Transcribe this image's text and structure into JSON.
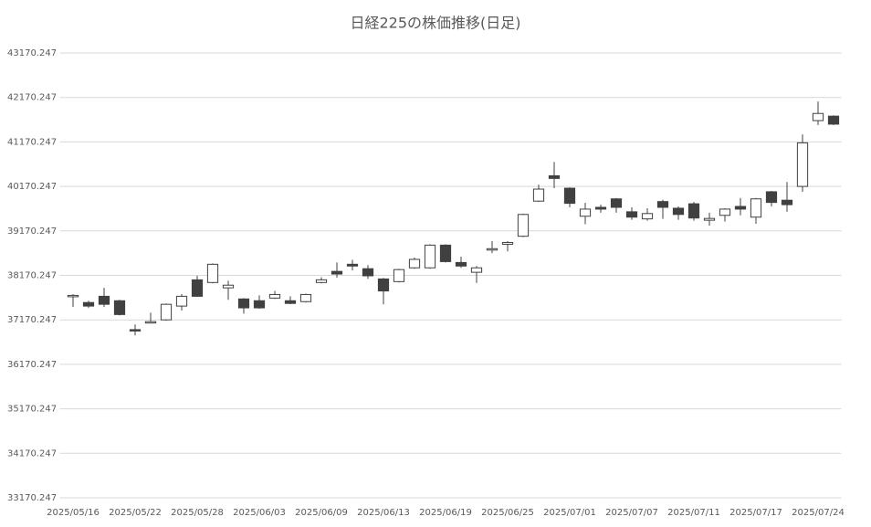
{
  "chart_data": {
    "type": "candlestick",
    "title": "日経225の株価推移(日足)",
    "categories": [
      "2025/05/16",
      null,
      null,
      null,
      "2025/05/22",
      null,
      null,
      null,
      "2025/05/28",
      null,
      null,
      null,
      "2025/06/03",
      null,
      null,
      null,
      "2025/06/09",
      null,
      null,
      null,
      "2025/06/13",
      null,
      null,
      null,
      "2025/06/19",
      null,
      null,
      null,
      "2025/06/25",
      null,
      null,
      null,
      "2025/07/01",
      null,
      null,
      null,
      "2025/07/07",
      null,
      null,
      null,
      "2025/07/11",
      null,
      null,
      null,
      "2025/07/17",
      null,
      null,
      null,
      "2025/07/24",
      null
    ],
    "open": [
      37710,
      37560,
      37700,
      37600,
      36950,
      37120,
      37170,
      37480,
      38070,
      38010,
      37890,
      37640,
      37600,
      37660,
      37600,
      37580,
      38010,
      38260,
      38420,
      38320,
      38090,
      38030,
      38340,
      38340,
      38850,
      38460,
      38240,
      38760,
      38870,
      39050,
      39840,
      40410,
      40130,
      39500,
      39700,
      39890,
      39600,
      39440,
      39830,
      39680,
      39780,
      39410,
      39520,
      39720,
      39480,
      40050,
      39860,
      40170,
      41650,
      41750
    ],
    "high": [
      37750,
      37600,
      37890,
      37620,
      37070,
      37330,
      37540,
      37750,
      38160,
      38440,
      38050,
      37660,
      37720,
      37820,
      37700,
      37760,
      38130,
      38460,
      38520,
      38400,
      38110,
      38320,
      38570,
      38870,
      38870,
      38590,
      38380,
      38940,
      38940,
      39560,
      40210,
      40720,
      40150,
      39800,
      39760,
      39910,
      39700,
      39680,
      39870,
      39720,
      39820,
      39580,
      39680,
      39910,
      39910,
      40070,
      40270,
      41340,
      42080,
      41770
    ],
    "low": [
      37460,
      37440,
      37460,
      37270,
      36820,
      37090,
      37150,
      37380,
      37690,
      37990,
      37620,
      37310,
      37420,
      37640,
      37520,
      37560,
      37990,
      38120,
      38280,
      38090,
      37520,
      38010,
      38320,
      38320,
      38460,
      38340,
      38000,
      38670,
      38710,
      39030,
      39820,
      40130,
      39700,
      39320,
      39580,
      39580,
      39420,
      39400,
      39440,
      39420,
      39400,
      39290,
      39380,
      39520,
      39330,
      39720,
      39600,
      40050,
      41550,
      41550
    ],
    "close": [
      37720,
      37480,
      37520,
      37290,
      36940,
      37130,
      37520,
      37700,
      37700,
      38420,
      37950,
      37440,
      37440,
      37740,
      37540,
      37740,
      38070,
      38200,
      38380,
      38160,
      37820,
      38300,
      38530,
      38850,
      38480,
      38380,
      38340,
      38770,
      38910,
      39540,
      40110,
      40350,
      39790,
      39660,
      39660,
      39700,
      39480,
      39560,
      39700,
      39540,
      39460,
      39450,
      39660,
      39660,
      39890,
      39810,
      39760,
      41150,
      41810,
      41570
    ],
    "up_color": "#ffffff",
    "down_color": "#404040",
    "edge_color": "#404040",
    "ylim": [
      33170.247,
      43170.247
    ],
    "yticks": [
      33170.247,
      34170.247,
      35170.247,
      36170.247,
      37170.247,
      38170.247,
      39170.247,
      40170.247,
      41170.247,
      42170.247,
      43170.247
    ],
    "grid": true
  }
}
